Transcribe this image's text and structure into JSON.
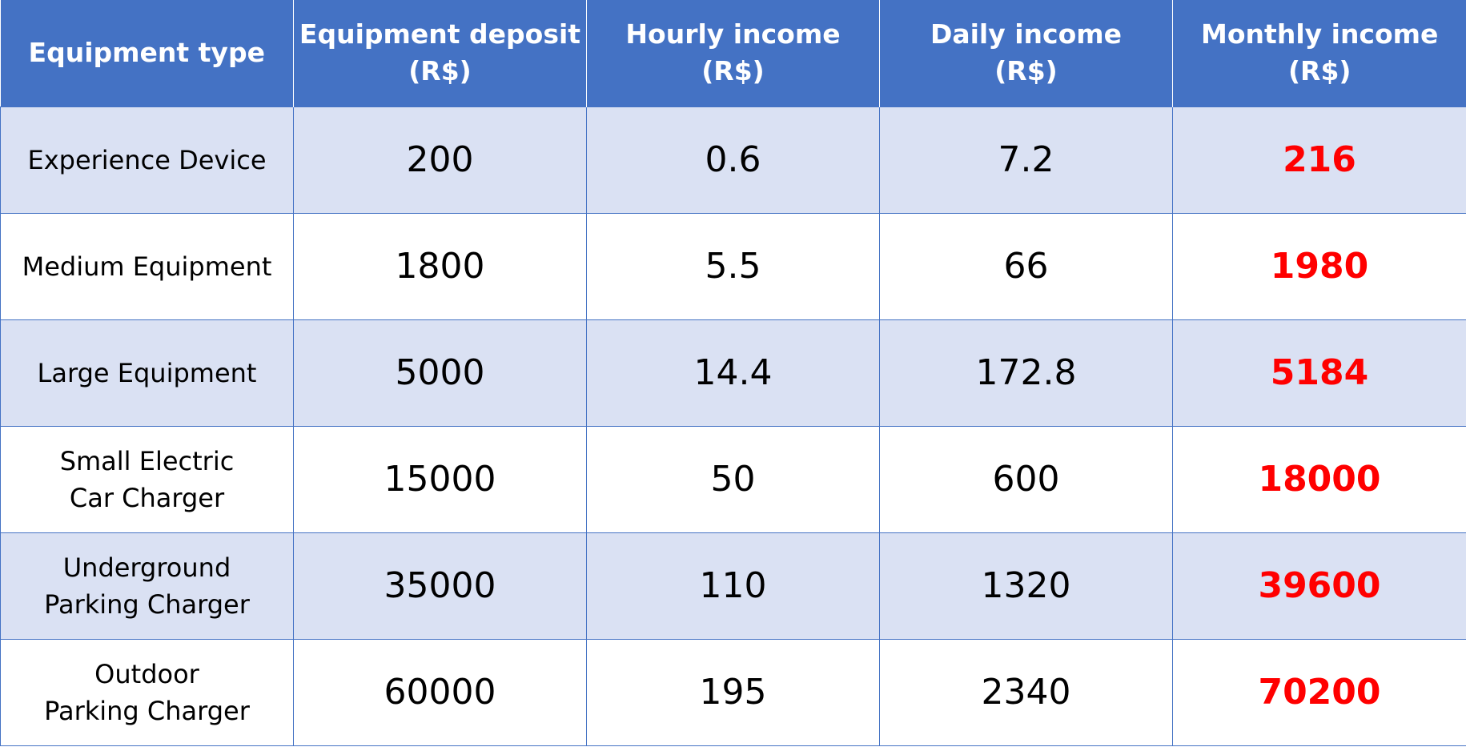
{
  "chart_data": {
    "type": "table",
    "title": "",
    "columns": [
      [
        "Equipment type"
      ],
      [
        "Equipment deposit",
        "(R$)"
      ],
      [
        "Hourly income",
        "(R$)"
      ],
      [
        "Daily income",
        "(R$)"
      ],
      [
        "Monthly income",
        "(R$)"
      ]
    ],
    "rows": [
      {
        "type": [
          "Experience Device"
        ],
        "deposit": "200",
        "hourly": "0.6",
        "daily": "7.2",
        "monthly": "216"
      },
      {
        "type": [
          "Medium Equipment"
        ],
        "deposit": "1800",
        "hourly": "5.5",
        "daily": "66",
        "monthly": "1980"
      },
      {
        "type": [
          "Large Equipment"
        ],
        "deposit": "5000",
        "hourly": "14.4",
        "daily": "172.8",
        "monthly": "5184"
      },
      {
        "type": [
          "Small Electric",
          "Car Charger"
        ],
        "deposit": "15000",
        "hourly": "50",
        "daily": "600",
        "monthly": "18000"
      },
      {
        "type": [
          "Underground",
          "Parking Charger"
        ],
        "deposit": "35000",
        "hourly": "110",
        "daily": "1320",
        "monthly": "39600"
      },
      {
        "type": [
          "Outdoor",
          "Parking Charger"
        ],
        "deposit": "60000",
        "hourly": "195",
        "daily": "2340",
        "monthly": "70200"
      }
    ]
  },
  "colors": {
    "header_bg": "#4472c4",
    "header_text": "#ffffff",
    "band_row": "#dae1f3",
    "plain_row": "#ffffff",
    "monthly_text": "#ff0000"
  }
}
